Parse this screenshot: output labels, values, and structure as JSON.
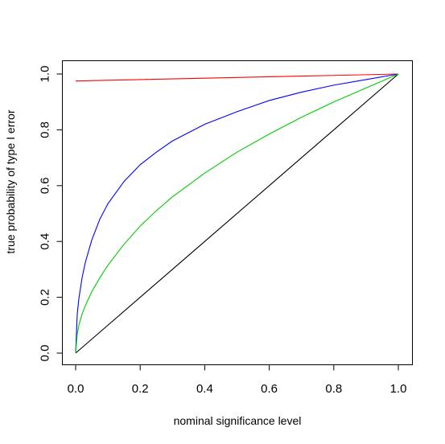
{
  "chart_data": {
    "type": "line",
    "title": "",
    "xlabel": "nominal significance level",
    "ylabel": "true probability of type I error",
    "xlim": [
      0,
      1
    ],
    "ylim": [
      0,
      1
    ],
    "x_ticks": [
      0,
      0.2,
      0.4,
      0.6,
      0.8,
      1
    ],
    "x_tick_labels": [
      "0.0",
      "0.2",
      "0.4",
      "0.6",
      "0.8",
      "1.0"
    ],
    "y_ticks": [
      0,
      0.2,
      0.4,
      0.6,
      0.8,
      1
    ],
    "y_tick_labels": [
      "0.0",
      "0.2",
      "0.4",
      "0.6",
      "0.8",
      "1.0"
    ],
    "grid": false,
    "legend": "none",
    "series": [
      {
        "color": "#000000",
        "x": [
          0,
          0.2,
          0.4,
          0.6,
          0.8,
          1
        ],
        "y": [
          0,
          0.2,
          0.4,
          0.6,
          0.8,
          1
        ]
      },
      {
        "color": "#ff0000",
        "x": [
          0,
          0.2,
          0.4,
          0.6,
          0.8,
          1
        ],
        "y": [
          0.975,
          0.98,
          0.985,
          0.99,
          0.995,
          1.0
        ]
      },
      {
        "color": "#0000ff",
        "x": [
          0,
          0.005,
          0.01,
          0.02,
          0.03,
          0.05,
          0.075,
          0.1,
          0.15,
          0.2,
          0.25,
          0.3,
          0.4,
          0.5,
          0.6,
          0.7,
          0.8,
          0.9,
          1.0
        ],
        "y": [
          0,
          0.14,
          0.195,
          0.27,
          0.325,
          0.405,
          0.48,
          0.535,
          0.615,
          0.675,
          0.72,
          0.76,
          0.82,
          0.865,
          0.905,
          0.935,
          0.96,
          0.98,
          1.0
        ]
      },
      {
        "color": "#00cc00",
        "x": [
          0,
          0.005,
          0.01,
          0.02,
          0.03,
          0.05,
          0.075,
          0.1,
          0.15,
          0.2,
          0.25,
          0.3,
          0.4,
          0.5,
          0.6,
          0.7,
          0.8,
          0.9,
          1.0
        ],
        "y": [
          0,
          0.07,
          0.1,
          0.14,
          0.17,
          0.22,
          0.27,
          0.315,
          0.39,
          0.455,
          0.51,
          0.56,
          0.645,
          0.72,
          0.785,
          0.845,
          0.9,
          0.95,
          1.0
        ]
      }
    ]
  }
}
